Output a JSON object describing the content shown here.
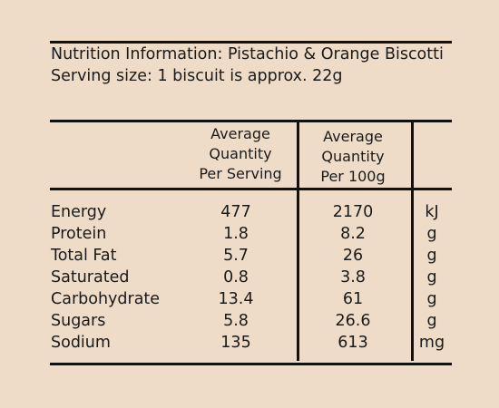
{
  "panel": {
    "title": "Nutrition Information: Pistachio & Orange Biscotti",
    "serving_size": "Serving size: 1 biscuit is approx. 22g"
  },
  "columns": {
    "per_serving": [
      "Average",
      "Quantity",
      "Per Serving"
    ],
    "per_100g": [
      "Average",
      "Quantity",
      "Per 100g"
    ]
  },
  "rows": [
    {
      "nutrient": "Energy",
      "per_serving": "477",
      "per_100g": "2170",
      "unit": "kJ"
    },
    {
      "nutrient": "Protein",
      "per_serving": "1.8",
      "per_100g": "8.2",
      "unit": "g"
    },
    {
      "nutrient": "Total Fat",
      "per_serving": "5.7",
      "per_100g": "26",
      "unit": "g"
    },
    {
      "nutrient": "Saturated",
      "per_serving": "0.8",
      "per_100g": "3.8",
      "unit": "g"
    },
    {
      "nutrient": "Carbohydrate",
      "per_serving": "13.4",
      "per_100g": "61",
      "unit": "g"
    },
    {
      "nutrient": "Sugars",
      "per_serving": "5.8",
      "per_100g": "26.6",
      "unit": "g"
    },
    {
      "nutrient": "Sodium",
      "per_serving": "135",
      "per_100g": "613",
      "unit": "mg"
    }
  ]
}
